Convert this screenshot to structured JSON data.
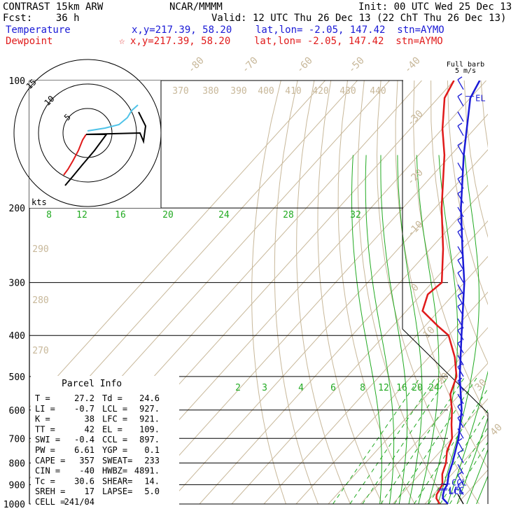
{
  "header": {
    "model": "CONTRAST 15km ARW",
    "source": "NCAR/MMMM",
    "init": "Init: 00 UTC Wed 25 Dec 13",
    "fcst": "Fcst:    36 h",
    "valid": "Valid: 12 UTC Thu 26 Dec 13 (22 ChT Thu 26 Dec 13)",
    "temperature_label": "Temperature",
    "temperature_info": "x,y=217.39, 58.20    lat,lon= -2.05, 147.42  stn=AYMO",
    "dewpoint_label": "Dewpoint",
    "dewpoint_marker": "☆",
    "dewpoint_info": "x,y=217.39, 58.20    lat,lon= -2.05, 147.42  stn=AYMO"
  },
  "colors": {
    "temperature": "#1a1ad6",
    "dewpoint": "#e01a1a",
    "isotherm": "#c8b89a",
    "mixing_ratio": "#22aa22",
    "hodo_lower": "#e01a1a",
    "hodo_mid": "#000000",
    "hodo_upper": "#4fc3e8",
    "axes": "#000000"
  },
  "chart_data": {
    "type": "skew-t",
    "pressure_levels": [
      "100",
      "200",
      "300",
      "400",
      "500",
      "600",
      "700",
      "800",
      "900",
      "1000"
    ],
    "isotherm_labels": [
      "-80",
      "-70",
      "-60",
      "-50",
      "-40",
      "-30",
      "-20",
      "-10",
      "0",
      "10",
      "20",
      "30",
      "40"
    ],
    "theta_labels": [
      "370",
      "380",
      "390",
      "400",
      "410",
      "420",
      "430",
      "440",
      "290",
      "280",
      "270"
    ],
    "mixing_ratio_top_labels": [
      "8",
      "12",
      "16",
      "20",
      "24",
      "28",
      "32"
    ],
    "mixing_ratio_mid_labels": [
      "2",
      "3",
      "4",
      "6",
      "8",
      "12",
      "16",
      "20",
      "24"
    ],
    "temperature_profile": [
      [
        1000,
        27.2
      ],
      [
        970,
        24
      ],
      [
        950,
        23
      ],
      [
        925,
        22
      ],
      [
        900,
        21.5
      ],
      [
        850,
        19
      ],
      [
        800,
        17
      ],
      [
        700,
        12
      ],
      [
        600,
        5
      ],
      [
        500,
        -5
      ],
      [
        400,
        -16
      ],
      [
        300,
        -30
      ],
      [
        250,
        -40
      ],
      [
        200,
        -52
      ],
      [
        150,
        -66
      ],
      [
        110,
        -80
      ],
      [
        100,
        -82
      ]
    ],
    "dewpoint_profile": [
      [
        1000,
        24.6
      ],
      [
        970,
        22
      ],
      [
        950,
        21
      ],
      [
        900,
        20
      ],
      [
        850,
        17
      ],
      [
        800,
        15
      ],
      [
        750,
        12
      ],
      [
        700,
        10
      ],
      [
        650,
        6
      ],
      [
        600,
        2
      ],
      [
        550,
        -3
      ],
      [
        500,
        -6
      ],
      [
        450,
        -12
      ],
      [
        400,
        -20
      ],
      [
        380,
        -26
      ],
      [
        350,
        -35
      ],
      [
        320,
        -38
      ],
      [
        300,
        -37
      ],
      [
        250,
        -46
      ],
      [
        200,
        -58
      ],
      [
        150,
        -72
      ],
      [
        130,
        -80
      ],
      [
        110,
        -88
      ],
      [
        100,
        -90
      ]
    ],
    "markers": {
      "el": "EL",
      "ccl": "CCL",
      "lcl": "LCL",
      "lfc": "LFC"
    },
    "wind_scale": {
      "title": "Full barb",
      "units": "5 m/s"
    },
    "hodograph": {
      "rings": [
        "5",
        "10",
        "15"
      ],
      "units": "kts"
    },
    "parcel_info": {
      "title": "Parcel Info",
      "rows": [
        [
          "T  =",
          "27.2",
          "Td =",
          "24.6"
        ],
        [
          "LI =",
          "-0.7",
          "LCL =",
          "927."
        ],
        [
          "K  =",
          "38",
          "LFC =",
          "921."
        ],
        [
          "TT =",
          "42",
          "EL =",
          "109."
        ],
        [
          "SWI =",
          "-0.4",
          "CCL =",
          "897."
        ],
        [
          "PW =",
          "6.61",
          "YGP =",
          "0.1"
        ],
        [
          "CAPE =",
          "357",
          "SWEAT=",
          "233"
        ],
        [
          "CIN =",
          "-40",
          "HWBZ=",
          "4891."
        ],
        [
          "Tc =",
          "30.6",
          "SHEAR=",
          "14."
        ],
        [
          "SREH =",
          "17",
          "LAPSE=",
          "5.0"
        ],
        [
          "CELL =",
          "241/04",
          "",
          ""
        ]
      ]
    }
  }
}
